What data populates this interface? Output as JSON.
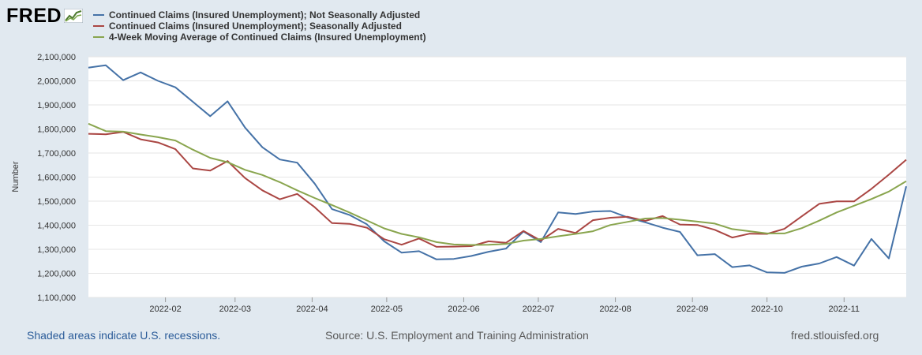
{
  "logo": {
    "text": "FRED"
  },
  "chart_data": {
    "type": "line",
    "title": "",
    "xlabel": "",
    "ylabel": "Number",
    "ylim": [
      1100000,
      2100000
    ],
    "yticks": [
      1100000,
      1200000,
      1300000,
      1400000,
      1500000,
      1600000,
      1700000,
      1800000,
      1900000,
      2000000,
      2100000
    ],
    "ytick_labels": [
      "1,100,000",
      "1,200,000",
      "1,300,000",
      "1,400,000",
      "1,500,000",
      "1,600,000",
      "1,700,000",
      "1,800,000",
      "1,900,000",
      "2,000,000",
      "2,100,000"
    ],
    "xlim": [
      "2022-01-01",
      "2022-11-26"
    ],
    "xticks": [
      "2022-02-01",
      "2022-03-01",
      "2022-04-01",
      "2022-05-01",
      "2022-06-01",
      "2022-07-01",
      "2022-08-01",
      "2022-09-01",
      "2022-10-01",
      "2022-11-01"
    ],
    "xtick_labels": [
      "2022-02",
      "2022-03",
      "2022-04",
      "2022-05",
      "2022-06",
      "2022-07",
      "2022-08",
      "2022-09",
      "2022-10",
      "2022-11"
    ],
    "grid": true,
    "legend_position": "top-left",
    "x": [
      "2022-01-01",
      "2022-01-08",
      "2022-01-15",
      "2022-01-22",
      "2022-01-29",
      "2022-02-05",
      "2022-02-12",
      "2022-02-19",
      "2022-02-26",
      "2022-03-05",
      "2022-03-12",
      "2022-03-19",
      "2022-03-26",
      "2022-04-02",
      "2022-04-09",
      "2022-04-16",
      "2022-04-23",
      "2022-04-30",
      "2022-05-07",
      "2022-05-14",
      "2022-05-21",
      "2022-05-28",
      "2022-06-04",
      "2022-06-11",
      "2022-06-18",
      "2022-06-25",
      "2022-07-02",
      "2022-07-09",
      "2022-07-16",
      "2022-07-23",
      "2022-07-30",
      "2022-08-06",
      "2022-08-13",
      "2022-08-20",
      "2022-08-27",
      "2022-09-03",
      "2022-09-10",
      "2022-09-17",
      "2022-09-24",
      "2022-10-01",
      "2022-10-08",
      "2022-10-15",
      "2022-10-22",
      "2022-10-29",
      "2022-11-05",
      "2022-11-12",
      "2022-11-19",
      "2022-11-26"
    ],
    "series": [
      {
        "name": "Continued Claims (Insured Unemployment); Not Seasonally Adjusted",
        "color": "#4572a7",
        "values": [
          2055000,
          2065000,
          2003000,
          2035000,
          2000000,
          1973000,
          1913000,
          1853000,
          1915000,
          1806000,
          1724000,
          1673000,
          1660000,
          1573000,
          1467000,
          1443000,
          1404000,
          1333000,
          1286000,
          1292000,
          1258000,
          1260000,
          1272000,
          1290000,
          1303000,
          1374000,
          1330000,
          1453000,
          1447000,
          1457000,
          1459000,
          1432000,
          1412000,
          1390000,
          1372000,
          1275000,
          1280000,
          1226000,
          1233000,
          1204000,
          1202000,
          1228000,
          1241000,
          1268000,
          1232000,
          1343000,
          1262000,
          1562000
        ]
      },
      {
        "name": "Continued Claims (Insured Unemployment); Seasonally Adjusted",
        "color": "#aa4643",
        "values": [
          1780000,
          1778000,
          1788000,
          1757000,
          1744000,
          1716000,
          1636000,
          1627000,
          1667000,
          1596000,
          1545000,
          1508000,
          1530000,
          1475000,
          1409000,
          1406000,
          1390000,
          1342000,
          1319000,
          1345000,
          1310000,
          1311000,
          1313000,
          1333000,
          1327000,
          1376000,
          1336000,
          1385000,
          1368000,
          1421000,
          1431000,
          1435000,
          1418000,
          1438000,
          1403000,
          1401000,
          1381000,
          1349000,
          1365000,
          1364000,
          1385000,
          1437000,
          1489000,
          1499000,
          1499000,
          1551000,
          1610000,
          1672000
        ]
      },
      {
        "name": "4-Week Moving Average of Continued Claims (Insured Unemployment)",
        "color": "#89a54e",
        "values": [
          1822000,
          1791000,
          1789000,
          1777000,
          1766000,
          1752000,
          1714000,
          1680000,
          1662000,
          1630000,
          1609000,
          1579000,
          1545000,
          1513000,
          1484000,
          1453000,
          1420000,
          1387000,
          1364000,
          1350000,
          1330000,
          1320000,
          1318000,
          1319000,
          1322000,
          1336000,
          1343000,
          1354000,
          1364000,
          1375000,
          1401000,
          1414000,
          1428000,
          1430000,
          1423000,
          1415000,
          1407000,
          1384000,
          1375000,
          1366000,
          1366000,
          1388000,
          1419000,
          1453000,
          1481000,
          1509000,
          1540000,
          1583000
        ]
      }
    ]
  },
  "footer": {
    "recessions_note": "Shaded areas indicate U.S. recessions.",
    "source": "Source: U.S. Employment and Training Administration",
    "site": "fred.stlouisfed.org"
  }
}
